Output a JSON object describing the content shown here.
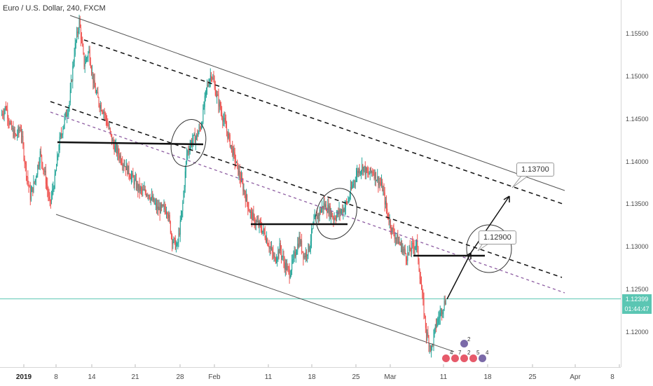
{
  "header": {
    "symbol": "Euro / U.S. Dollar, 240, FXCM"
  },
  "price_axis": {
    "ticks": [
      "1.15500",
      "1.15000",
      "1.14500",
      "1.14000",
      "1.13500",
      "1.13000",
      "1.12500",
      "1.12000"
    ],
    "current_price": "1.12399",
    "countdown": "01:44:47"
  },
  "time_axis": {
    "ticks": [
      {
        "label": "2019",
        "bold": true
      },
      {
        "label": "8",
        "bold": false
      },
      {
        "label": "14",
        "bold": false
      },
      {
        "label": "21",
        "bold": false
      },
      {
        "label": "28",
        "bold": false
      },
      {
        "label": "Feb",
        "bold": false
      },
      {
        "label": "11",
        "bold": false
      },
      {
        "label": "18",
        "bold": false
      },
      {
        "label": "25",
        "bold": false
      },
      {
        "label": "Mar",
        "bold": false
      },
      {
        "label": "11",
        "bold": false
      },
      {
        "label": "18",
        "bold": false
      },
      {
        "label": "25",
        "bold": false
      },
      {
        "label": "Apr",
        "bold": false
      },
      {
        "label": "8",
        "bold": false
      }
    ]
  },
  "annotations": {
    "target_1": "1.12900",
    "target_2": "1.13700"
  },
  "events": {
    "badge_count": "2",
    "row_numbers": [
      "4",
      "7",
      "2",
      "5",
      "4"
    ]
  },
  "colors": {
    "up": "#26a69a",
    "down": "#ef5350",
    "price_line": "#5bc6b3",
    "midline": "#8e5ea2"
  },
  "chart_data": {
    "type": "candlestick",
    "title": "Euro / U.S. Dollar, 240, FXCM",
    "ylim": [
      1.116,
      1.159
    ],
    "x": [
      "2019",
      "8",
      "14",
      "21",
      "28",
      "Feb",
      "11",
      "18",
      "25",
      "Mar",
      "11",
      "18",
      "25",
      "Apr",
      "8"
    ],
    "close_path": [
      [
        0,
        1.1455
      ],
      [
        1,
        1.1465
      ],
      [
        2,
        1.144
      ],
      [
        3,
        1.143
      ],
      [
        4,
        1.144
      ],
      [
        5,
        1.1395
      ],
      [
        6,
        1.136
      ],
      [
        7,
        1.138
      ],
      [
        8,
        1.141
      ],
      [
        9,
        1.1385
      ],
      [
        10,
        1.135
      ],
      [
        11,
        1.138
      ],
      [
        12,
        1.1425
      ],
      [
        13,
        1.145
      ],
      [
        14,
        1.147
      ],
      [
        15,
        1.153
      ],
      [
        16,
        1.1565
      ],
      [
        17,
        1.1515
      ],
      [
        18,
        1.153
      ],
      [
        19,
        1.149
      ],
      [
        20,
        1.147
      ],
      [
        21,
        1.146
      ],
      [
        22,
        1.144
      ],
      [
        23,
        1.142
      ],
      [
        24,
        1.141
      ],
      [
        25,
        1.14
      ],
      [
        26,
        1.139
      ],
      [
        27,
        1.138
      ],
      [
        28,
        1.137
      ],
      [
        29,
        1.1365
      ],
      [
        30,
        1.1365
      ],
      [
        31,
        1.1355
      ],
      [
        32,
        1.1345
      ],
      [
        33,
        1.1345
      ],
      [
        34,
        1.1345
      ],
      [
        35,
        1.131
      ],
      [
        36,
        1.13
      ],
      [
        37,
        1.134
      ],
      [
        38,
        1.141
      ],
      [
        39,
        1.1425
      ],
      [
        40,
        1.143
      ],
      [
        41,
        1.1445
      ],
      [
        42,
        1.1485
      ],
      [
        43,
        1.1505
      ],
      [
        44,
        1.148
      ],
      [
        45,
        1.146
      ],
      [
        46,
        1.144
      ],
      [
        47,
        1.142
      ],
      [
        48,
        1.14
      ],
      [
        49,
        1.138
      ],
      [
        50,
        1.136
      ],
      [
        51,
        1.134
      ],
      [
        52,
        1.133
      ],
      [
        53,
        1.1325
      ],
      [
        54,
        1.1315
      ],
      [
        55,
        1.13
      ],
      [
        56,
        1.1285
      ],
      [
        57,
        1.13
      ],
      [
        58,
        1.128
      ],
      [
        59,
        1.127
      ],
      [
        60,
        1.129
      ],
      [
        61,
        1.131
      ],
      [
        62,
        1.129
      ],
      [
        63,
        1.13
      ],
      [
        64,
        1.133
      ],
      [
        65,
        1.134
      ],
      [
        66,
        1.135
      ],
      [
        67,
        1.1345
      ],
      [
        68,
        1.1335
      ],
      [
        69,
        1.134
      ],
      [
        70,
        1.1345
      ],
      [
        71,
        1.1355
      ],
      [
        72,
        1.1375
      ],
      [
        73,
        1.139
      ],
      [
        74,
        1.1395
      ],
      [
        75,
        1.1385
      ],
      [
        76,
        1.139
      ],
      [
        77,
        1.138
      ],
      [
        78,
        1.137
      ],
      [
        79,
        1.134
      ],
      [
        80,
        1.132
      ],
      [
        81,
        1.131
      ],
      [
        82,
        1.13
      ],
      [
        83,
        1.129
      ],
      [
        84,
        1.13
      ],
      [
        85,
        1.1305
      ],
      [
        86,
        1.125
      ],
      [
        87,
        1.12
      ],
      [
        88,
        1.118
      ],
      [
        89,
        1.121
      ],
      [
        90,
        1.1225
      ],
      [
        91,
        1.124
      ]
    ]
  }
}
